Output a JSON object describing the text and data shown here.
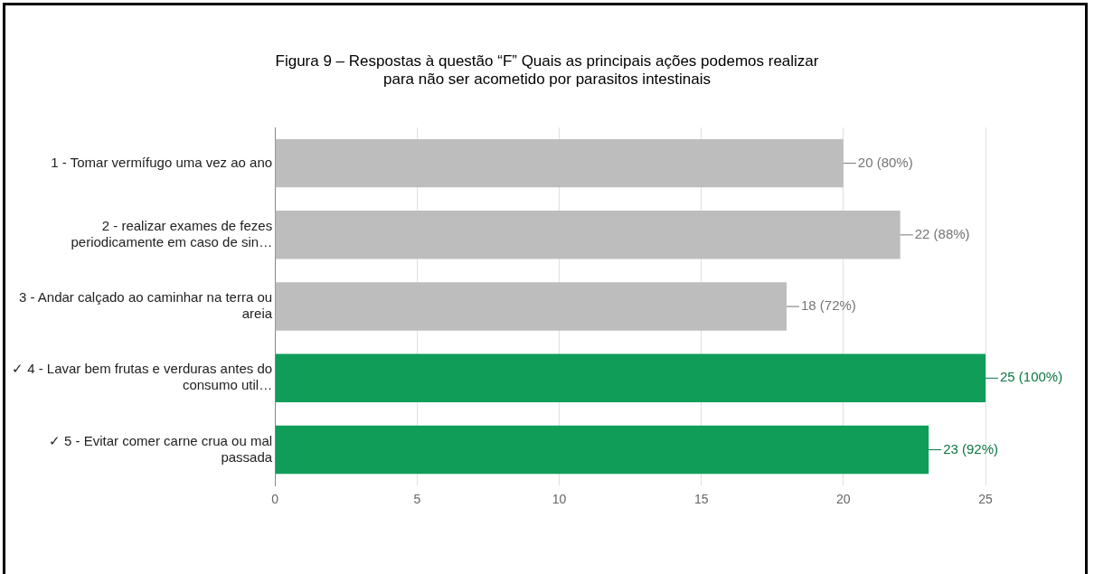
{
  "chart_data": {
    "type": "bar",
    "orientation": "horizontal",
    "title": "Figura 9 – Respostas à questão “F” Quais as principais ações podemos realizar para não ser acometido por parasitos intestinais",
    "categories": [
      "1 - Tomar vermífugo uma vez ao ano",
      "2 - realizar exames de fezes periodicamente em caso de sin…",
      "3 - Andar calçado ao caminhar na terra ou areia",
      "✓ 4 - Lavar bem frutas e verduras antes do consumo util…",
      "✓ 5 - Evitar comer carne crua ou mal passada"
    ],
    "values": [
      20,
      22,
      18,
      25,
      23
    ],
    "colors": [
      "#bdbdbd",
      "#bdbdbd",
      "#bdbdbd",
      "#0f9d58",
      "#0f9d58"
    ],
    "value_labels": [
      "20 (80%)",
      "22 (88%)",
      "18 (72%)",
      "25 (100%)",
      "23 (92%)"
    ],
    "xlim": [
      0,
      25
    ],
    "xticks": [
      0,
      5,
      10,
      15,
      20,
      25
    ],
    "grid": "x",
    "legend": false
  }
}
